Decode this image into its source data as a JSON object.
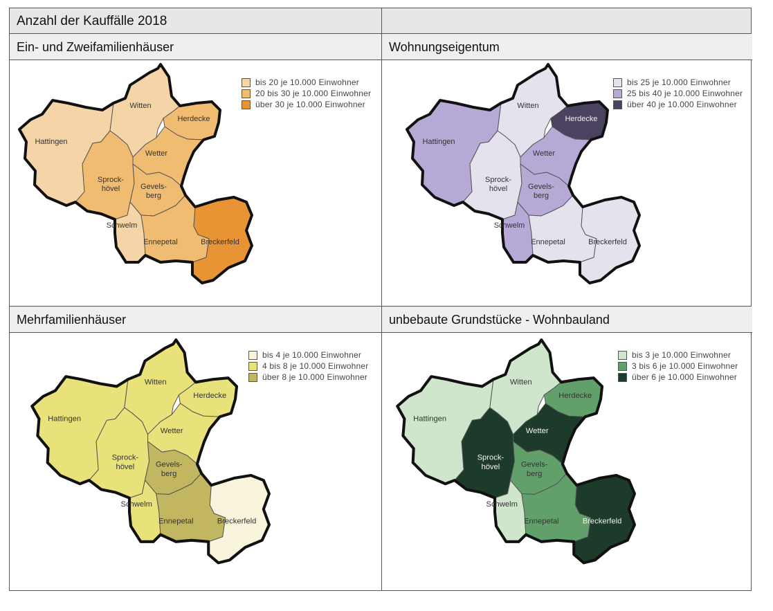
{
  "title": "Anzahl der Kauffälle  2018",
  "panels": [
    {
      "title": "Ein- und Zweifamilienhäuser",
      "legend": [
        {
          "label": "bis 20 je 10.000 Einwohner",
          "color": "#f5d5a8"
        },
        {
          "label": "20 bis 30 je 10.000 Einwohner",
          "color": "#f0bc72"
        },
        {
          "label": "über 30 je 10.000 Einwohner",
          "color": "#e89434"
        }
      ],
      "regions": {
        "Hattingen": 0,
        "Witten": 0,
        "Herdecke": 1,
        "Wetter": 1,
        "Sprockhövel": 1,
        "Gevelsberg": 1,
        "Schwelm": 0,
        "Ennepetal": 1,
        "Breckerfeld": 2
      }
    },
    {
      "title": "Wohnungseigentum",
      "legend": [
        {
          "label": "bis 25 je 10.000 Einwohner",
          "color": "#e4e2ec"
        },
        {
          "label": "25 bis 40 je 10.000 Einwohner",
          "color": "#b7a9d6"
        },
        {
          "label": "über 40 je 10.000 Einwohner",
          "color": "#4b4260"
        }
      ],
      "regions": {
        "Hattingen": 1,
        "Witten": 0,
        "Herdecke": 2,
        "Wetter": 1,
        "Sprockhövel": 0,
        "Gevelsberg": 1,
        "Schwelm": 1,
        "Ennepetal": 0,
        "Breckerfeld": 0
      }
    },
    {
      "title": "Mehrfamilienhäuser",
      "legend": [
        {
          "label": "bis 4 je 10.000 Einwohner",
          "color": "#f9f5dc"
        },
        {
          "label": "4 bis 8 je 10.000 Einwohner",
          "color": "#e9e27a"
        },
        {
          "label": "über 8 je 10.000 Einwohner",
          "color": "#c2b660"
        }
      ],
      "regions": {
        "Hattingen": 1,
        "Witten": 1,
        "Herdecke": 1,
        "Wetter": 1,
        "Sprockhövel": 1,
        "Gevelsberg": 2,
        "Schwelm": 1,
        "Ennepetal": 2,
        "Breckerfeld": 0
      }
    },
    {
      "title": "unbebaute Grundstücke - Wohnbauland",
      "legend": [
        {
          "label": "bis 3 je 10.000 Einwohner",
          "color": "#cfe6cc"
        },
        {
          "label": "3 bis 6 je 10.000 Einwohner",
          "color": "#62a06b"
        },
        {
          "label": "über 6 je 10.000 Einwohner",
          "color": "#1d3b2a"
        }
      ],
      "regions": {
        "Hattingen": 0,
        "Witten": 0,
        "Herdecke": 1,
        "Wetter": 2,
        "Sprockhövel": 2,
        "Gevelsberg": 1,
        "Schwelm": 0,
        "Ennepetal": 1,
        "Breckerfeld": 2
      }
    }
  ],
  "region_labels": {
    "Hattingen": [
      "Hattingen"
    ],
    "Witten": [
      "Witten"
    ],
    "Herdecke": [
      "Herdecke"
    ],
    "Wetter": [
      "Wetter"
    ],
    "Sprockhövel": [
      "Sprock-",
      "hövel"
    ],
    "Gevelsberg": [
      "Gevels-",
      "berg"
    ],
    "Schwelm": [
      "Schwelm"
    ],
    "Ennepetal": [
      "Ennepetal"
    ],
    "Breckerfeld": [
      "Breckerfeld"
    ]
  }
}
